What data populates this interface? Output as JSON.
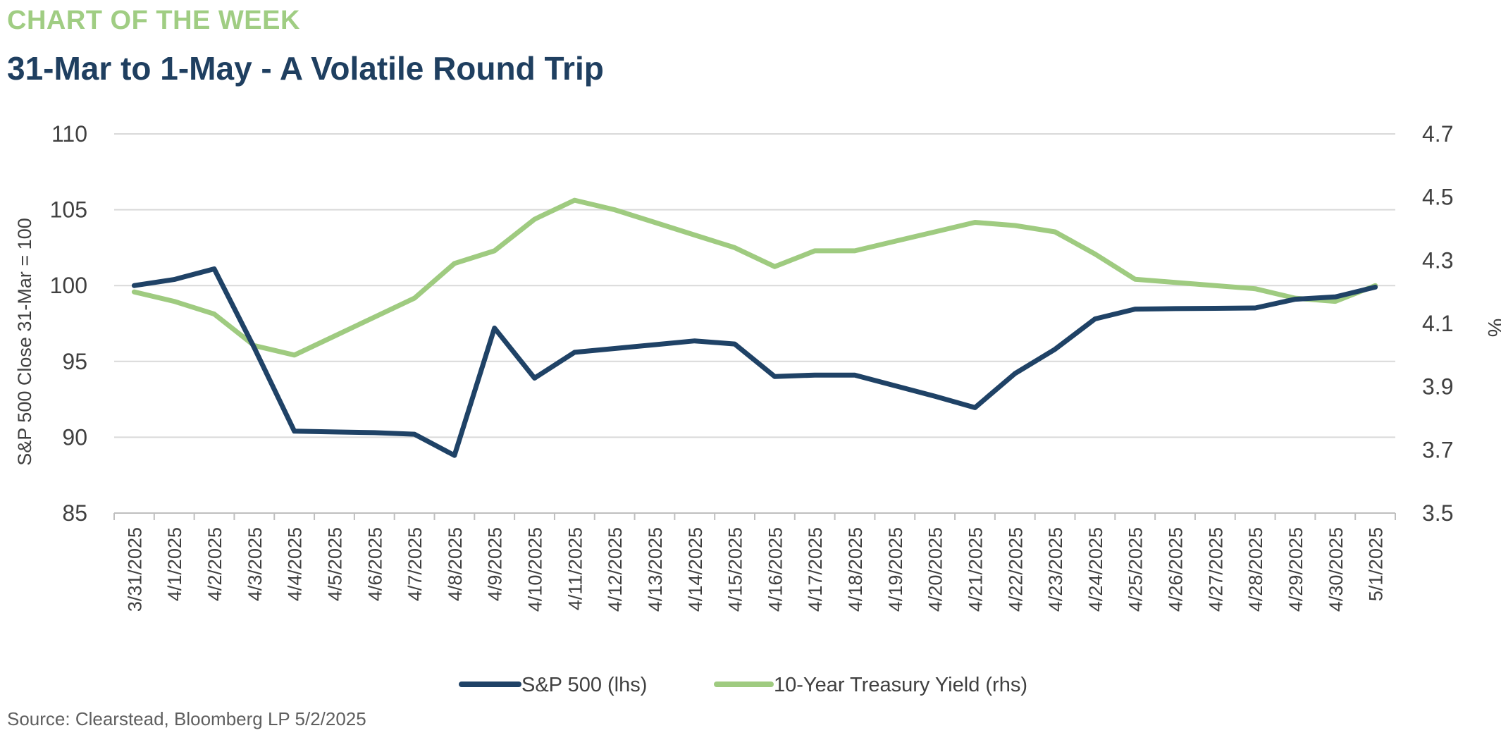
{
  "header": {
    "kicker": "CHART OF THE WEEK",
    "title": "31-Mar to 1-May - A Volatile Round Trip"
  },
  "footer": {
    "source": "Source: Clearstead, Bloomberg LP 5/2/2025"
  },
  "colors": {
    "sp500": "#1f4266",
    "treasury": "#9fcb80",
    "grid": "#d9d9d9",
    "kicker": "#a0cd83",
    "title": "#1f3f60"
  },
  "chart_data": {
    "type": "line",
    "x": [
      "3/31/2025",
      "4/1/2025",
      "4/2/2025",
      "4/3/2025",
      "4/4/2025",
      "4/5/2025",
      "4/6/2025",
      "4/7/2025",
      "4/8/2025",
      "4/9/2025",
      "4/10/2025",
      "4/11/2025",
      "4/12/2025",
      "4/13/2025",
      "4/14/2025",
      "4/15/2025",
      "4/16/2025",
      "4/17/2025",
      "4/18/2025",
      "4/19/2025",
      "4/20/2025",
      "4/21/2025",
      "4/22/2025",
      "4/23/2025",
      "4/24/2025",
      "4/25/2025",
      "4/26/2025",
      "4/27/2025",
      "4/28/2025",
      "4/29/2025",
      "4/30/2025",
      "5/1/2025"
    ],
    "ylabel": "S&P 500 Close 31-Mar = 100",
    "y2label": "%",
    "ylim": [
      85,
      110
    ],
    "y2lim": [
      3.5,
      4.7
    ],
    "yticks": [
      "85",
      "90",
      "95",
      "100",
      "105",
      "110"
    ],
    "y2ticks": [
      "3.5",
      "3.7",
      "3.9",
      "4.1",
      "4.3",
      "4.5",
      "4.7"
    ],
    "grid": true,
    "legend_position": "bottom",
    "series": [
      {
        "name": "S&P 500 (lhs)",
        "axis": "left",
        "values": [
          100.0,
          100.4,
          101.1,
          95.9,
          90.4,
          90.35,
          90.3,
          90.2,
          88.8,
          97.2,
          93.9,
          95.6,
          95.85,
          96.1,
          96.35,
          96.15,
          94.0,
          94.1,
          94.1,
          93.4,
          92.7,
          91.95,
          94.2,
          95.8,
          97.8,
          98.45,
          98.48,
          98.5,
          98.52,
          99.1,
          99.25,
          99.9
        ]
      },
      {
        "name": "10-Year Treasury Yield (rhs)",
        "axis": "right",
        "values": [
          4.2,
          4.17,
          4.13,
          4.03,
          4.0,
          4.06,
          4.12,
          4.18,
          4.29,
          4.33,
          4.43,
          4.49,
          4.46,
          4.42,
          4.38,
          4.34,
          4.28,
          4.33,
          4.33,
          4.36,
          4.39,
          4.42,
          4.41,
          4.39,
          4.32,
          4.24,
          4.23,
          4.22,
          4.21,
          4.18,
          4.17,
          4.22
        ]
      }
    ]
  }
}
